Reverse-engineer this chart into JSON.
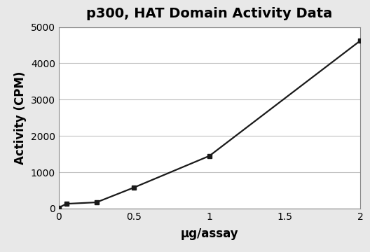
{
  "title": "p300, HAT Domain Activity Data",
  "xlabel": "μg/assay",
  "ylabel": "Activity (CPM)",
  "x_data": [
    0.0,
    0.05,
    0.25,
    0.5,
    1.0,
    2.0
  ],
  "y_data": [
    20,
    130,
    170,
    580,
    1450,
    4620
  ],
  "xlim": [
    0,
    2.0
  ],
  "ylim": [
    0,
    5000
  ],
  "xticks": [
    0,
    0.5,
    1.0,
    1.5,
    2.0
  ],
  "yticks": [
    0,
    1000,
    2000,
    3000,
    4000,
    5000
  ],
  "line_color": "#1a1a1a",
  "marker": "s",
  "marker_size": 4,
  "marker_color": "#1a1a1a",
  "line_width": 1.6,
  "bg_color": "#ffffff",
  "fig_bg_color": "#e8e8e8",
  "title_fontsize": 14,
  "label_fontsize": 12,
  "tick_fontsize": 10,
  "grid_color": "#c0c0c0",
  "spine_color": "#888888"
}
